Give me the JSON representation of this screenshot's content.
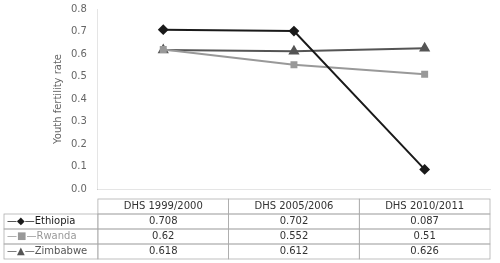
{
  "chart_data": {
    "type": "line",
    "categories": [
      "DHS 1999/2000",
      "DHS 2005/2006",
      "DHS 2010/2011"
    ],
    "series": [
      {
        "name": "—◆—Ethiopia",
        "color": "#1a1a1a",
        "marker": "diamond",
        "values": [
          0.708,
          0.702,
          0.087
        ]
      },
      {
        "name": "—■—Rwanda",
        "color": "#999999",
        "marker": "square",
        "values": [
          0.62,
          0.552,
          0.51
        ]
      },
      {
        "name": "—▲—Zimbabwe",
        "color": "#555555",
        "marker": "triangle",
        "values": [
          0.618,
          0.612,
          0.626
        ]
      }
    ],
    "y_label": "Youth fertility rate",
    "ylim": [
      0.0,
      0.8
    ],
    "yticks": [
      {
        "value": 0.0,
        "label": "0.0"
      },
      0.1,
      0.2,
      0.3,
      0.4,
      0.5,
      0.6,
      0.7,
      0.8
    ],
    "grid": false,
    "data_labels": true,
    "tick_labels": "y"
  }
}
